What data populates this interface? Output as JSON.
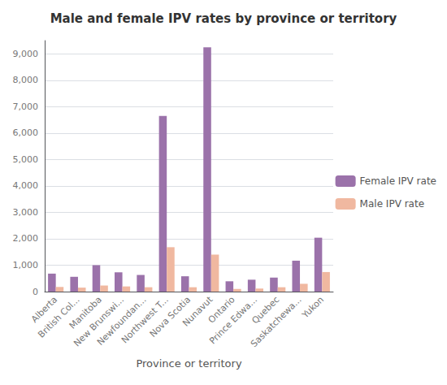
{
  "chart_data": {
    "type": "bar",
    "title": "Male and female IPV rates by province or territory",
    "xlabel": "Province or territory",
    "categories": [
      "Alberta",
      "British Col...",
      "Manitoba",
      "New Brunswi...",
      "Newfoundan...",
      "Northwest T...",
      "Nova Scotia",
      "Nunavut",
      "Ontario",
      "Prince Edwa...",
      "Quebec",
      "Saskatchewa...",
      "Yukon"
    ],
    "series": [
      {
        "name": "Female IPV rate",
        "color": "#9b72aa",
        "values": [
          680,
          560,
          1000,
          730,
          630,
          6650,
          580,
          9250,
          390,
          450,
          530,
          1170,
          2040
        ]
      },
      {
        "name": "Male IPV rate",
        "color": "#f0b8a0",
        "values": [
          175,
          150,
          230,
          195,
          165,
          1680,
          165,
          1400,
          100,
          115,
          165,
          295,
          740
        ]
      }
    ],
    "ylim": [
      0,
      9500
    ],
    "yticks": [
      0,
      {
        "value": 1000,
        "label": "1,000"
      },
      {
        "value": 2000,
        "label": "2,000"
      },
      {
        "value": 3000,
        "label": "3,000"
      },
      {
        "value": 4000,
        "label": "4,000"
      },
      {
        "value": 5000,
        "label": "5,000"
      },
      {
        "value": 6000,
        "label": "6,000"
      },
      {
        "value": 7000,
        "label": "7,000"
      },
      {
        "value": 8000,
        "label": "8,000"
      },
      {
        "value": 9000,
        "label": "9,000"
      }
    ],
    "grid": true,
    "legend": "right"
  }
}
